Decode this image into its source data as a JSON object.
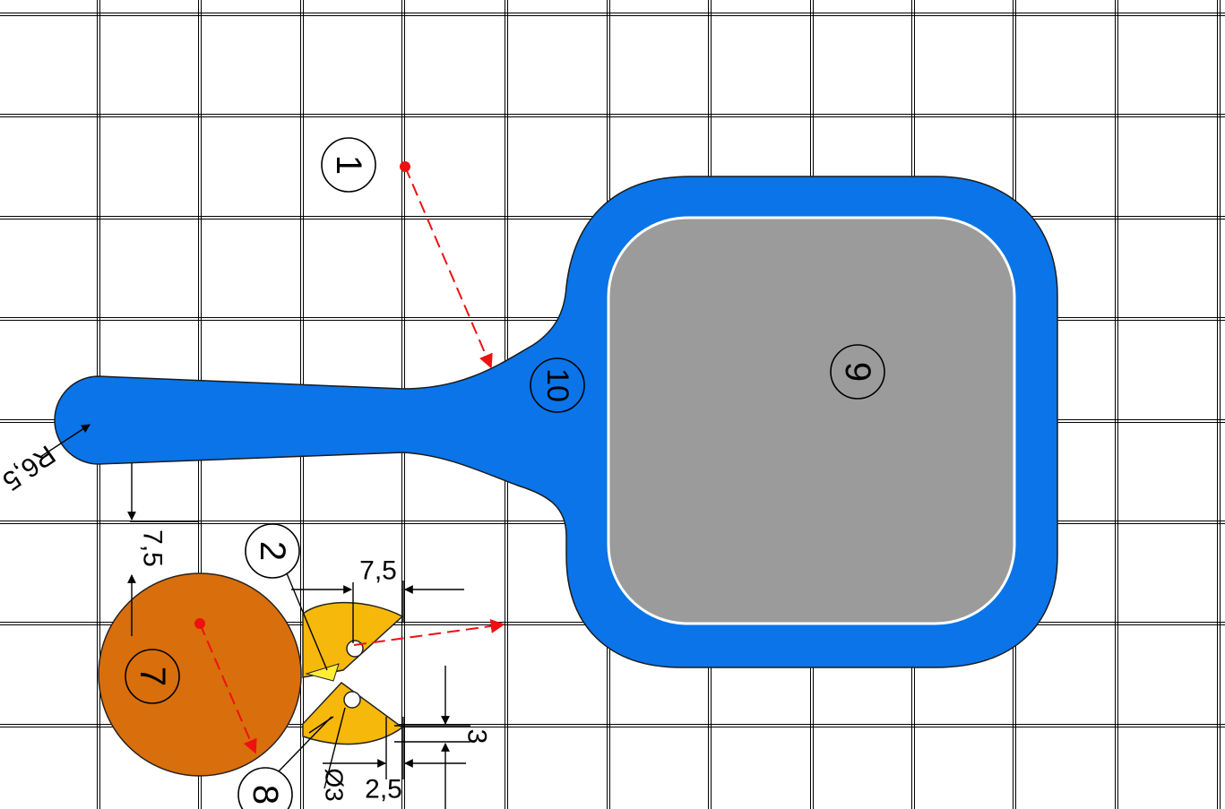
{
  "callouts": {
    "c1": "1",
    "c2": "2",
    "c7": "7",
    "c8": "8",
    "c9": "9",
    "c10": "10"
  },
  "dimensions": {
    "radius": "R6,5",
    "offset_vertical": "7,5",
    "width_top": "7,5",
    "gap": "3",
    "hole_diameter": "Ø3",
    "width_bottom": "2,5"
  },
  "colors": {
    "paddle_blue": "#0a74e8",
    "face_gray": "#9b9b9b",
    "head_brown": "#d86e0c",
    "beak_yellow": "#f6b80a",
    "tongue_yellow": "#ffee33",
    "marker_red": "#ee1111"
  }
}
